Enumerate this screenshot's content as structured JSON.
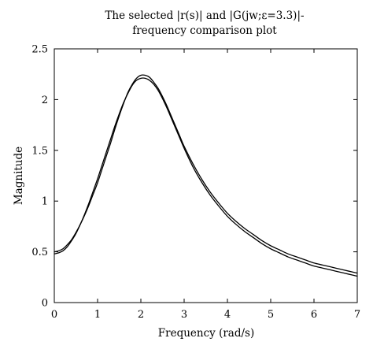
{
  "chart_data": {
    "type": "line",
    "title_lines": [
      "The selected |r(s)| and |G(jw;ε=3.3)|-",
      "frequency comparison plot"
    ],
    "xlabel": "Frequency (rad/s)",
    "ylabel": "Magnitude",
    "xlim": [
      0,
      7
    ],
    "ylim": [
      0,
      2.5
    ],
    "xticks": [
      "0",
      "1",
      "2",
      "3",
      "4",
      "5",
      "6",
      "7"
    ],
    "yticks": [
      "0",
      "0.5",
      "1",
      "1.5",
      "2",
      "2.5"
    ],
    "grid": false,
    "legend": false,
    "series": [
      {
        "x": [
          0,
          0.1,
          0.2,
          0.3,
          0.4,
          0.5,
          0.6,
          0.7,
          0.8,
          0.9,
          1.0,
          1.1,
          1.2,
          1.3,
          1.4,
          1.5,
          1.6,
          1.7,
          1.8,
          1.9,
          2.0,
          2.1,
          2.2,
          2.3,
          2.4,
          2.5,
          2.6,
          2.7,
          2.8,
          2.9,
          3.0,
          3.2,
          3.4,
          3.6,
          3.8,
          4.0,
          4.2,
          4.4,
          4.6,
          4.8,
          5.0,
          5.2,
          5.4,
          5.6,
          5.8,
          6.0,
          6.2,
          6.4,
          6.6,
          6.8,
          7.0
        ],
        "values": [
          0.5,
          0.51,
          0.53,
          0.57,
          0.62,
          0.69,
          0.77,
          0.86,
          0.96,
          1.07,
          1.18,
          1.31,
          1.44,
          1.57,
          1.71,
          1.84,
          1.96,
          2.07,
          2.15,
          2.21,
          2.24,
          2.24,
          2.22,
          2.17,
          2.11,
          2.03,
          1.94,
          1.84,
          1.74,
          1.64,
          1.54,
          1.37,
          1.22,
          1.09,
          0.98,
          0.88,
          0.8,
          0.73,
          0.67,
          0.61,
          0.56,
          0.52,
          0.48,
          0.45,
          0.42,
          0.39,
          0.37,
          0.35,
          0.33,
          0.31,
          0.29
        ]
      },
      {
        "x": [
          0,
          0.1,
          0.2,
          0.3,
          0.4,
          0.5,
          0.6,
          0.7,
          0.8,
          0.9,
          1.0,
          1.1,
          1.2,
          1.3,
          1.4,
          1.5,
          1.6,
          1.7,
          1.8,
          1.9,
          2.0,
          2.1,
          2.2,
          2.3,
          2.4,
          2.5,
          2.6,
          2.7,
          2.8,
          2.9,
          3.0,
          3.2,
          3.4,
          3.6,
          3.8,
          4.0,
          4.2,
          4.4,
          4.6,
          4.8,
          5.0,
          5.2,
          5.4,
          5.6,
          5.8,
          6.0,
          6.2,
          6.4,
          6.6,
          6.8,
          7.0
        ],
        "values": [
          0.48,
          0.49,
          0.51,
          0.55,
          0.61,
          0.68,
          0.77,
          0.87,
          0.98,
          1.1,
          1.22,
          1.35,
          1.48,
          1.61,
          1.74,
          1.86,
          1.97,
          2.06,
          2.14,
          2.19,
          2.21,
          2.21,
          2.19,
          2.15,
          2.09,
          2.01,
          1.92,
          1.82,
          1.72,
          1.62,
          1.52,
          1.34,
          1.19,
          1.06,
          0.95,
          0.85,
          0.77,
          0.7,
          0.64,
          0.58,
          0.53,
          0.49,
          0.45,
          0.42,
          0.39,
          0.36,
          0.34,
          0.32,
          0.3,
          0.28,
          0.26
        ]
      }
    ]
  }
}
